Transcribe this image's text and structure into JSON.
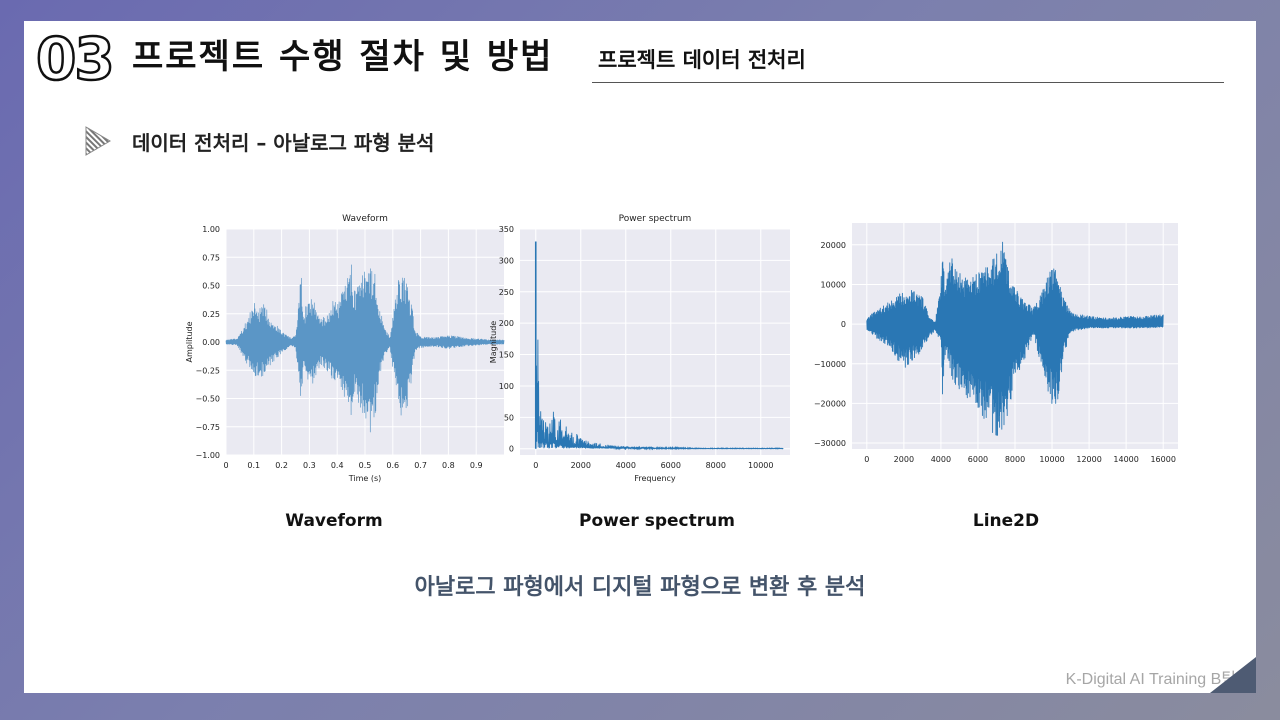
{
  "header": {
    "section_number": "03",
    "section_title": "프로젝트 수행 절차 및 방법",
    "sub_title": "프로젝트 데이터 전처리"
  },
  "bullet": {
    "text": "데이터 전처리 – 아날로그 파형 분석",
    "icon": "triangle-bullet-icon"
  },
  "captions": [
    "Waveform",
    "Power spectrum",
    "Line2D"
  ],
  "summary": "아날로그 파형에서 디지털 파형으로 변환 후 분석",
  "footer": "K-Digital AI Training B팀",
  "colors": {
    "line": "#2a77b4",
    "wave": "#5b96c6",
    "plot_bg": "#eaeaf2",
    "grid": "#ffffff",
    "summary": "#44546a"
  },
  "chart_data": [
    {
      "type": "area",
      "title": "Waveform",
      "xlabel": "Time (s)",
      "ylabel": "Amplitude",
      "xlim": [
        0,
        1.0
      ],
      "ylim": [
        -1.0,
        1.0
      ],
      "xticks": [
        "0",
        "0.1",
        "0.2",
        "0.3",
        "0.4",
        "0.5",
        "0.6",
        "0.7",
        "0.8",
        "0.9"
      ],
      "yticks": [
        "1.00",
        "0.75",
        "0.50",
        "0.25",
        "0.00",
        "−0.25",
        "−0.50",
        "−0.75",
        "−1.00"
      ],
      "grid": true,
      "envelope": {
        "x": [
          0,
          0.04,
          0.06,
          0.09,
          0.1,
          0.12,
          0.14,
          0.16,
          0.2,
          0.23,
          0.25,
          0.26,
          0.27,
          0.28,
          0.3,
          0.32,
          0.34,
          0.37,
          0.39,
          0.41,
          0.42,
          0.44,
          0.45,
          0.46,
          0.49,
          0.51,
          0.52,
          0.54,
          0.55,
          0.57,
          0.59,
          0.6,
          0.62,
          0.63,
          0.65,
          0.67,
          0.68,
          0.7,
          0.75,
          0.8,
          0.86,
          0.9,
          0.95,
          1.0
        ],
        "upper": [
          0.02,
          0.03,
          0.12,
          0.28,
          0.36,
          0.3,
          0.34,
          0.22,
          0.1,
          0.04,
          0.05,
          0.32,
          0.61,
          0.25,
          0.45,
          0.35,
          0.2,
          0.27,
          0.4,
          0.35,
          0.5,
          0.58,
          0.72,
          0.45,
          0.6,
          0.75,
          0.67,
          0.6,
          0.35,
          0.12,
          0.05,
          0.25,
          0.55,
          0.62,
          0.58,
          0.3,
          0.1,
          0.05,
          0.04,
          0.06,
          0.04,
          0.03,
          0.02,
          0.02
        ],
        "lower": [
          -0.02,
          -0.03,
          -0.12,
          -0.26,
          -0.33,
          -0.3,
          -0.32,
          -0.2,
          -0.1,
          -0.04,
          -0.05,
          -0.3,
          -0.55,
          -0.25,
          -0.42,
          -0.33,
          -0.2,
          -0.27,
          -0.38,
          -0.35,
          -0.5,
          -0.62,
          -0.7,
          -0.45,
          -0.62,
          -0.93,
          -0.78,
          -0.62,
          -0.35,
          -0.12,
          -0.05,
          -0.25,
          -0.55,
          -0.65,
          -0.6,
          -0.3,
          -0.1,
          -0.05,
          -0.04,
          -0.06,
          -0.04,
          -0.03,
          -0.02,
          -0.02
        ]
      }
    },
    {
      "type": "line",
      "title": "Power spectrum",
      "xlabel": "Frequency",
      "ylabel": "Magnitude",
      "xlim": [
        -700,
        11300
      ],
      "ylim": [
        -10,
        350
      ],
      "xticks": [
        "0",
        "2000",
        "4000",
        "6000",
        "8000",
        "10000"
      ],
      "yticks": [
        "350",
        "300",
        "250",
        "200",
        "150",
        "100",
        "50",
        "0"
      ],
      "grid": true,
      "series": [
        {
          "x": [
            0,
            40,
            90,
            140,
            200,
            260,
            330,
            400,
            480,
            560,
            640,
            720,
            800,
            900,
            1000,
            1100,
            1200,
            1300,
            1400,
            1500,
            1600,
            1700,
            1800,
            2000,
            2200,
            2400,
            2600,
            2800,
            3000,
            3300,
            3600,
            4000,
            4500,
            5000,
            5500,
            6000,
            6500,
            7000,
            7500,
            8000,
            9000,
            10000,
            11000
          ],
          "y": [
            330,
            120,
            240,
            60,
            92,
            40,
            88,
            30,
            70,
            25,
            55,
            45,
            90,
            20,
            40,
            50,
            18,
            35,
            45,
            15,
            32,
            12,
            25,
            18,
            14,
            12,
            10,
            9,
            8,
            6,
            5,
            4,
            3,
            3,
            2,
            2,
            2,
            1,
            1,
            1,
            1,
            1,
            1
          ]
        }
      ]
    },
    {
      "type": "line",
      "title": "",
      "xlabel": "",
      "ylabel": "",
      "xlim": [
        -800,
        16800
      ],
      "ylim": [
        -31500,
        25500
      ],
      "xticks": [
        "0",
        "2000",
        "4000",
        "6000",
        "8000",
        "10000",
        "12000",
        "14000",
        "16000"
      ],
      "yticks": [
        "20000",
        "10000",
        "0",
        "−10000",
        "−20000",
        "−30000"
      ],
      "grid": true,
      "envelope": {
        "x": [
          0,
          500,
          1000,
          1500,
          2000,
          2500,
          3000,
          3400,
          3700,
          4000,
          4100,
          4200,
          4400,
          4600,
          5000,
          5500,
          6000,
          6500,
          7000,
          7300,
          7600,
          8000,
          8500,
          9000,
          9500,
          10000,
          10300,
          10600,
          11000,
          12000,
          13000,
          14000,
          15000,
          16000
        ],
        "upper": [
          1500,
          3500,
          5000,
          6500,
          8500,
          9000,
          7000,
          1500,
          500,
          12000,
          21000,
          9000,
          15000,
          17000,
          13000,
          11000,
          13000,
          15000,
          18000,
          22000,
          15000,
          9000,
          6000,
          4000,
          9000,
          15000,
          13000,
          7000,
          3000,
          2000,
          1500,
          2000,
          2000,
          2500
        ],
        "lower": [
          -1500,
          -3500,
          -5000,
          -8000,
          -11500,
          -9000,
          -7000,
          -3000,
          -2000,
          -5000,
          -19500,
          -8000,
          -9000,
          -14000,
          -17000,
          -20000,
          -22000,
          -25000,
          -29000,
          -28500,
          -23000,
          -14000,
          -9000,
          -3000,
          -12000,
          -21000,
          -20000,
          -9000,
          -2000,
          -1000,
          -1000,
          -1000,
          -1000,
          -800
        ]
      }
    }
  ]
}
